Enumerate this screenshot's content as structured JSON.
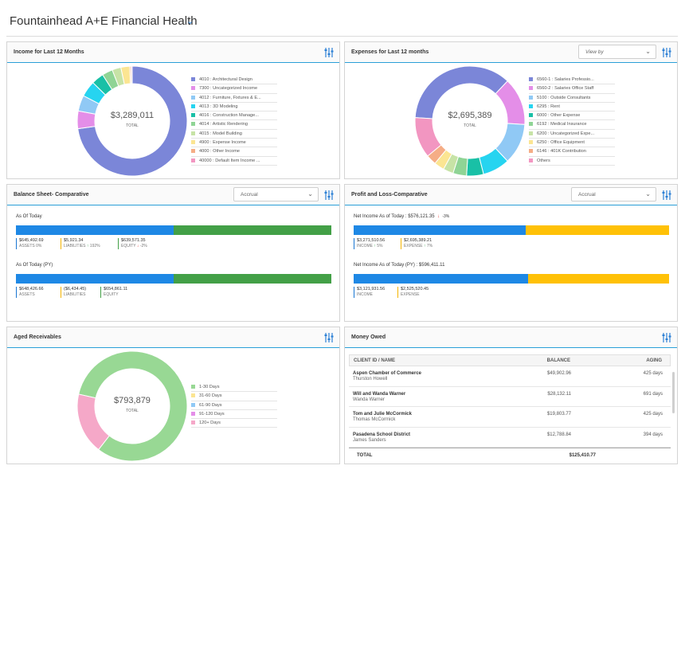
{
  "page": {
    "title": "Fountainhead A+E Financial Health"
  },
  "income": {
    "title": "Income for Last 12 Months",
    "total": "$3,289,011",
    "total_label": "TOTAL",
    "legend": [
      {
        "label": "4010 : Architectural Design",
        "color": "#7b86d8",
        "value": 70.0
      },
      {
        "label": "7300 : Uncategorized Income",
        "color": "#e48ee8",
        "value": 5.0
      },
      {
        "label": "4012 : Furniture, Fixtures & E...",
        "color": "#90c9f5",
        "value": 4.5
      },
      {
        "label": "4013 : 3D Modeling",
        "color": "#26d4f0",
        "value": 4.5
      },
      {
        "label": "4016 : Construction Manage...",
        "color": "#19c0a6",
        "value": 3.5
      },
      {
        "label": "4014 : Artistic Rendering",
        "color": "#8fd495",
        "value": 3.0
      },
      {
        "label": "4015 : Model Building",
        "color": "#c7e3a6",
        "value": 2.5
      },
      {
        "label": "4900 : Expense Income",
        "color": "#fbe592",
        "value": 2.5
      },
      {
        "label": "4000 : Other Income",
        "color": "#f5ad86",
        "value": 0.4
      },
      {
        "label": "40000 : Default Item Income ...",
        "color": "#f296c1",
        "value": 0.3
      }
    ]
  },
  "expenses": {
    "title": "Expenses for Last 12 months",
    "view_by": "View by",
    "total": "$2,695,389",
    "total_label": "TOTAL",
    "legend": [
      {
        "label": "6560-1 : Salaries Professio...",
        "color": "#7b86d8",
        "value": 36
      },
      {
        "label": "6560-2 : Salaries Office Staff",
        "color": "#e48ee8",
        "value": 14
      },
      {
        "label": "5100 : Outside Consultants",
        "color": "#90c9f5",
        "value": 12
      },
      {
        "label": "6295 : Rent",
        "color": "#26d4f0",
        "value": 8
      },
      {
        "label": "6000 : Other Expense",
        "color": "#19c0a6",
        "value": 5
      },
      {
        "label": "6192 : Medical Insurance",
        "color": "#8fd495",
        "value": 4
      },
      {
        "label": "6200 : Uncategorized Expe...",
        "color": "#c7e3a6",
        "value": 3
      },
      {
        "label": "6250 : Office Equipment",
        "color": "#fbe592",
        "value": 3
      },
      {
        "label": "6146 : 401K Contribution",
        "color": "#f5ad86",
        "value": 3
      },
      {
        "label": "Others",
        "color": "#f296c1",
        "value": 12
      }
    ]
  },
  "balance": {
    "title": "Balance Sheet- Comparative",
    "dropdown": "Accrual",
    "today_label": "As Of Today",
    "today_split": 0.5,
    "today_stats": [
      {
        "value": "$645,492.69",
        "label": "ASSETS",
        "change": "0%",
        "dir": "none",
        "tone": "blue"
      },
      {
        "value": "$5,921.34",
        "label": "LIABILITIES",
        "change": "192%",
        "dir": "up",
        "tone": "yellow"
      },
      {
        "value": "$639,571.35",
        "label": "EQUITY",
        "change": "-2%",
        "dir": "down",
        "tone": "green"
      }
    ],
    "py_label": "As Of Today (PY)",
    "py_split": 0.5,
    "py_stats": [
      {
        "value": "$648,426.66",
        "label": "ASSETS",
        "tone": "blue"
      },
      {
        "value": "($6,434.45)",
        "label": "LIABILITIES",
        "tone": "yellow"
      },
      {
        "value": "$654,861.11",
        "label": "EQUITY",
        "tone": "green"
      }
    ]
  },
  "pnl": {
    "title": "Profit and Loss-Comparative",
    "dropdown": "Accrual",
    "today_label": "Net Income As of Today : $576,121.35",
    "today_change": "-3%",
    "today_split": 0.545,
    "today_stats": [
      {
        "value": "$3,271,510.56",
        "label": "INCOME",
        "change": "5%",
        "dir": "up",
        "tone": "blue"
      },
      {
        "value": "$2,695,389.21",
        "label": "EXPENSE",
        "change": "7%",
        "dir": "up",
        "tone": "yellow"
      }
    ],
    "py_label": "Net Income As of Today (PY) : $596,411.11",
    "py_split": 0.552,
    "py_stats": [
      {
        "value": "$3,121,931.56",
        "label": "INCOME",
        "tone": "blue"
      },
      {
        "value": "$2,525,520.45",
        "label": "EXPENSE",
        "tone": "yellow"
      }
    ]
  },
  "aged": {
    "title": "Aged Receivables",
    "total": "$793,879",
    "total_label": "TOTAL",
    "legend": [
      {
        "label": "1-30 Days",
        "color": "#98d894",
        "value": 82
      },
      {
        "label": "31-60 Days",
        "color": "#fbe592",
        "value": 0
      },
      {
        "label": "61-90 Days",
        "color": "#90c9f5",
        "value": 0
      },
      {
        "label": "91-120 Days",
        "color": "#e48ee8",
        "value": 0
      },
      {
        "label": "120+ Days",
        "color": "#f5a8c8",
        "value": 18
      }
    ]
  },
  "money_owed": {
    "title": "Money Owed",
    "columns": {
      "client": "CLIENT ID / NAME",
      "balance": "BALANCE",
      "aging": "AGING"
    },
    "rows": [
      {
        "name": "Aspen Chamber of Commerce",
        "contact": "Thurston Howell",
        "balance": "$49,902.96",
        "aging": "425 days"
      },
      {
        "name": "Will and Wanda Warner",
        "contact": "Wanda Warner",
        "balance": "$28,132.11",
        "aging": "691 days"
      },
      {
        "name": "Tom and Julie McCormick",
        "contact": "Thomas McCormick",
        "balance": "$19,803.77",
        "aging": "425 days"
      },
      {
        "name": "Pasadena School District",
        "contact": "James Sanders",
        "balance": "$12,788.84",
        "aging": "394 days"
      }
    ],
    "total_label": "TOTAL",
    "total_value": "$125,410.77"
  },
  "colors": {
    "blue": "#1e88e5",
    "green": "#43a047",
    "yellow": "#ffc107",
    "accent": "#2a9fd8"
  }
}
